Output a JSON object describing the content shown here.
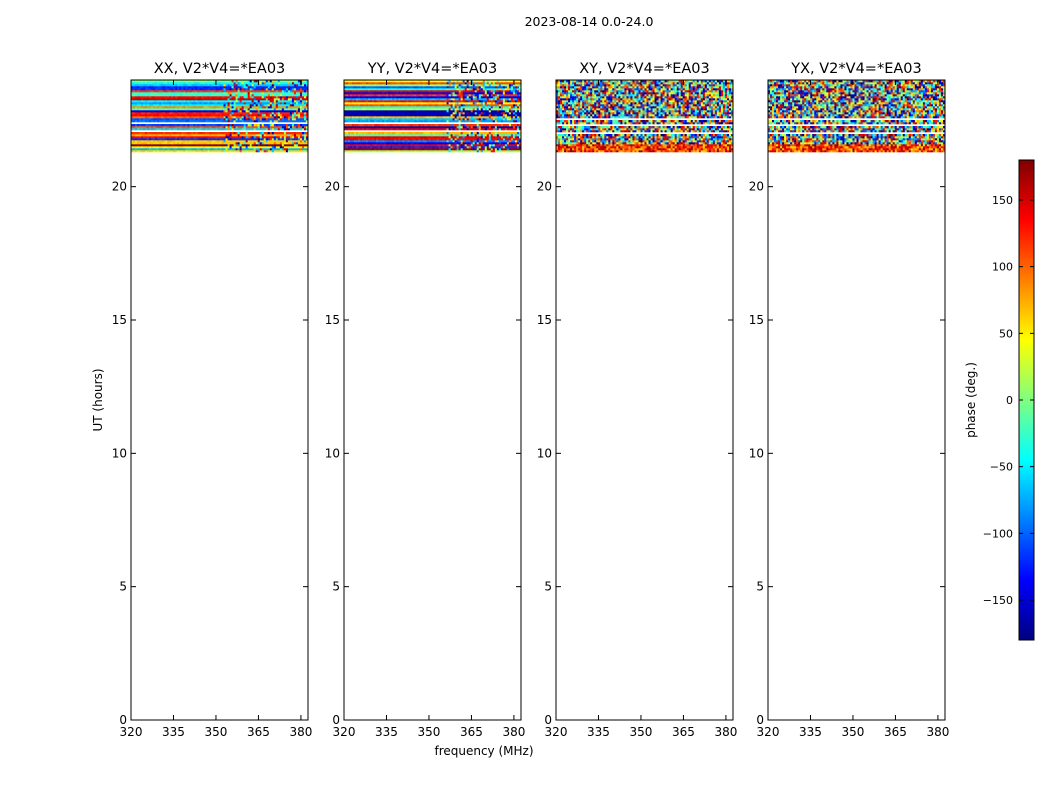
{
  "figure": {
    "suptitle": "2023-08-14 0.0-24.0",
    "xlabel": "frequency (MHz)",
    "ylabel": "UT (hours)"
  },
  "colorbar": {
    "label": "phase (deg.)",
    "range": [
      -180,
      180
    ],
    "ticks": [
      -150,
      -100,
      -50,
      0,
      50,
      100,
      150
    ],
    "tick_labels": [
      "−150",
      "−100",
      "−50",
      "0",
      "50",
      "100",
      "150"
    ],
    "colormap": "jet"
  },
  "chart_data": [
    {
      "type": "heatmap",
      "title": "XX, V2*V4=*EA03",
      "polarization": "XX",
      "xlim": [
        320,
        382.5
      ],
      "ylim": [
        0,
        24
      ],
      "xticks": [
        320,
        335,
        350,
        365,
        380
      ],
      "yticks": [
        0,
        5,
        10,
        15,
        20
      ],
      "data_extent_hours": [
        21.3,
        24
      ],
      "value_unit": "phase (deg.)",
      "noise_start_mhz": 352,
      "row_pattern": "structured"
    },
    {
      "type": "heatmap",
      "title": "YY, V2*V4=*EA03",
      "polarization": "YY",
      "xlim": [
        320,
        382.5
      ],
      "ylim": [
        0,
        24
      ],
      "xticks": [
        320,
        335,
        350,
        365,
        380
      ],
      "yticks": [
        0,
        5,
        10,
        15,
        20
      ],
      "data_extent_hours": [
        21.3,
        24
      ],
      "value_unit": "phase (deg.)",
      "noise_start_mhz": 356,
      "row_pattern": "structured"
    },
    {
      "type": "heatmap",
      "title": "XY, V2*V4=*EA03",
      "polarization": "XY",
      "xlim": [
        320,
        382.5
      ],
      "ylim": [
        0,
        24
      ],
      "xticks": [
        320,
        335,
        350,
        365,
        380
      ],
      "yticks": [
        0,
        5,
        10,
        15,
        20
      ],
      "data_extent_hours": [
        21.3,
        24
      ],
      "value_unit": "phase (deg.)",
      "noise_start_mhz": 320,
      "row_pattern": "noisy"
    },
    {
      "type": "heatmap",
      "title": "YX, V2*V4=*EA03",
      "polarization": "YX",
      "xlim": [
        320,
        382.5
      ],
      "ylim": [
        0,
        24
      ],
      "xticks": [
        320,
        335,
        350,
        365,
        380
      ],
      "yticks": [
        0,
        5,
        10,
        15,
        20
      ],
      "data_extent_hours": [
        21.3,
        24
      ],
      "value_unit": "phase (deg.)",
      "noise_start_mhz": 320,
      "row_pattern": "noisy"
    }
  ]
}
